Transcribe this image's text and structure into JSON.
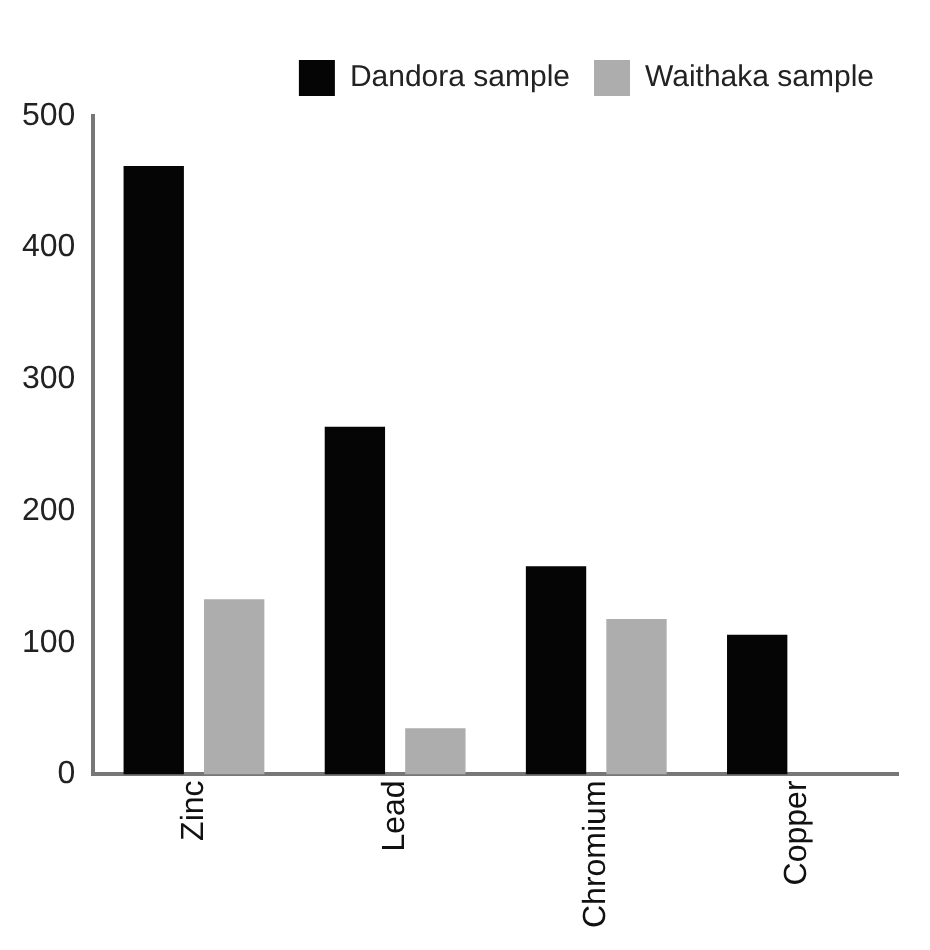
{
  "chart_data": {
    "type": "bar",
    "categories": [
      "Zinc",
      "Lead",
      "Chromium",
      "Copper"
    ],
    "series": [
      {
        "name": "Dandora sample",
        "color": "#050505",
        "values": [
          462,
          264,
          158,
          106
        ]
      },
      {
        "name": "Waithaka sample",
        "color": "#adadad",
        "values": [
          133,
          35,
          118,
          0
        ]
      }
    ],
    "ylim": [
      0,
      500
    ],
    "yticks": [
      0,
      100,
      200,
      300,
      400,
      500
    ],
    "grid": false,
    "legend": "top right"
  }
}
